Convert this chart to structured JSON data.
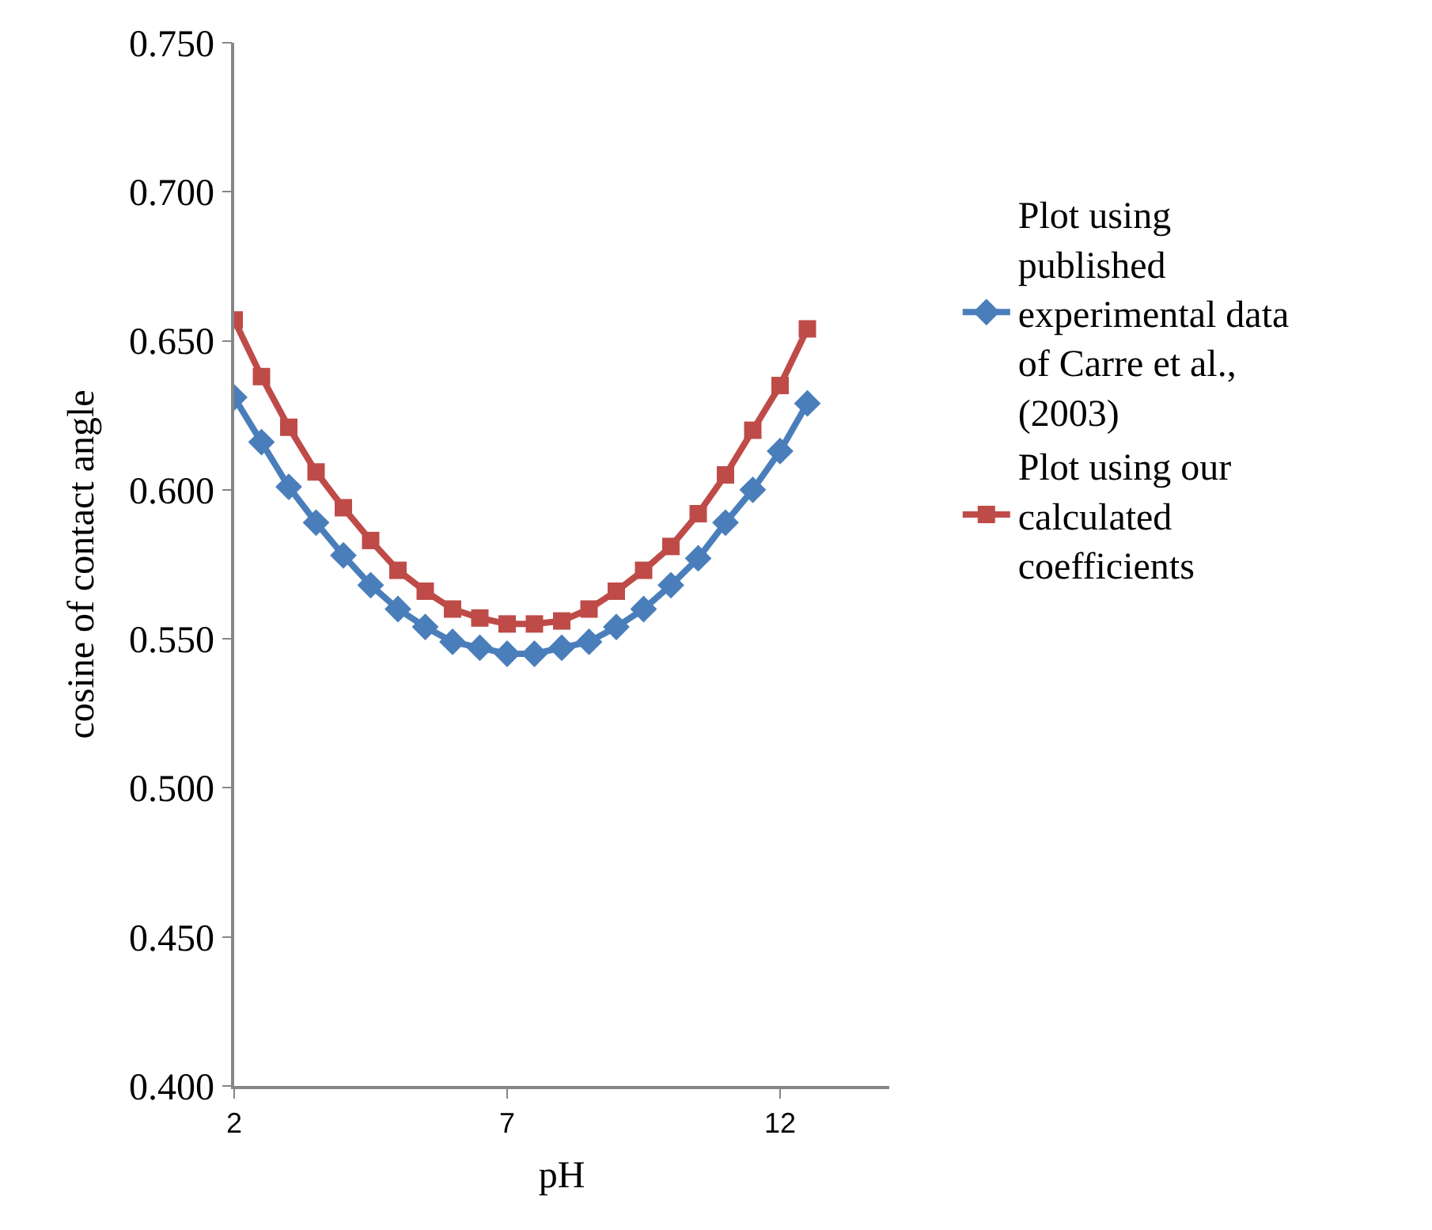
{
  "chart_data": {
    "type": "line",
    "xlabel": "pH",
    "ylabel": "cosine of contact angle",
    "x": [
      2,
      2.5,
      3,
      3.5,
      4,
      4.5,
      5,
      5.5,
      6,
      6.5,
      7,
      7.5,
      8,
      8.5,
      9,
      9.5,
      10,
      10.5,
      11,
      11.5,
      12,
      12.5
    ],
    "series": [
      {
        "name": "Plot using published experimental data of Carre et al., (2003)",
        "color": "#4a7ebb",
        "marker": "diamond",
        "values": [
          0.631,
          0.616,
          0.601,
          0.589,
          0.578,
          0.568,
          0.56,
          0.554,
          0.549,
          0.547,
          0.545,
          0.545,
          0.547,
          0.549,
          0.554,
          0.56,
          0.568,
          0.577,
          0.589,
          0.6,
          0.613,
          0.629
        ]
      },
      {
        "name": "Plot using our calculated coefficients",
        "color": "#be4b48",
        "marker": "square",
        "values": [
          0.657,
          0.638,
          0.621,
          0.606,
          0.594,
          0.583,
          0.573,
          0.566,
          0.56,
          0.557,
          0.555,
          0.555,
          0.556,
          0.56,
          0.566,
          0.573,
          0.581,
          0.592,
          0.605,
          0.62,
          0.635,
          0.654
        ]
      }
    ],
    "xlim": [
      2,
      14
    ],
    "xticks": [
      2,
      7,
      12
    ],
    "ylim": [
      0.4,
      0.75
    ],
    "yticks": [
      {
        "value": 0.4,
        "label": "0.400"
      },
      {
        "value": 0.45,
        "label": "0.450"
      },
      {
        "value": 0.5,
        "label": "0.500"
      },
      {
        "value": 0.55,
        "label": "0.550"
      },
      {
        "value": 0.6,
        "label": "0.600"
      },
      {
        "value": 0.65,
        "label": "0.650"
      },
      {
        "value": 0.7,
        "label": "0.700"
      },
      {
        "value": 0.75,
        "label": "0.750"
      }
    ],
    "legend": "right",
    "line_style": "solid"
  }
}
